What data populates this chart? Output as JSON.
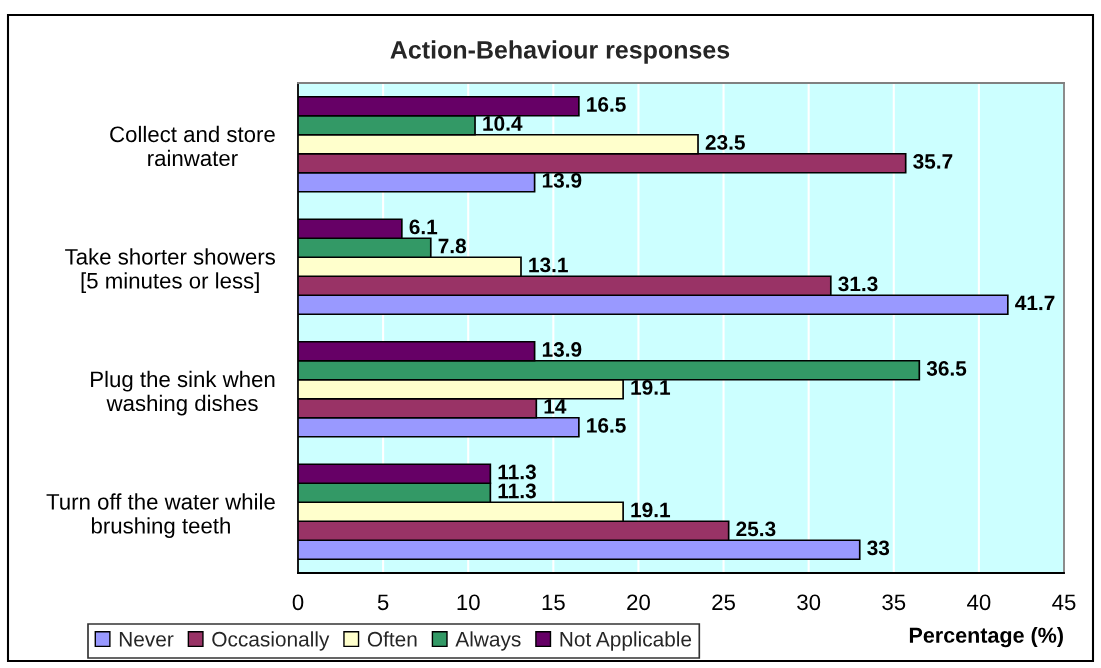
{
  "chart_data": {
    "type": "bar",
    "orientation": "horizontal",
    "title": "Action-Behaviour responses",
    "xlabel": "Percentage (%)",
    "categories": [
      "Collect and store\nrainwater",
      "Take shorter showers\n[5 minutes or less]",
      "Plug the sink when\nwashing dishes",
      "Turn off the water while\nbrushing teeth"
    ],
    "series": [
      {
        "name": "Never",
        "color": "#9999ff",
        "values": [
          13.9,
          41.7,
          16.5,
          33
        ]
      },
      {
        "name": "Occasionally",
        "color": "#993366",
        "values": [
          35.7,
          31.3,
          14,
          25.3
        ]
      },
      {
        "name": "Often",
        "color": "#ffffcc",
        "values": [
          23.5,
          13.1,
          19.1,
          19.1
        ]
      },
      {
        "name": "Always",
        "color": "#339966",
        "values": [
          10.4,
          7.8,
          36.5,
          11.3
        ]
      },
      {
        "name": "Not Applicable",
        "color": "#660066",
        "values": [
          16.5,
          6.1,
          13.9,
          11.3
        ]
      }
    ],
    "xlim": [
      0,
      45
    ],
    "xticks": [
      0,
      5,
      10,
      15,
      20,
      25,
      30,
      35,
      40,
      45
    ],
    "grid": "x",
    "legend": "bottom left",
    "data_labels": true
  }
}
